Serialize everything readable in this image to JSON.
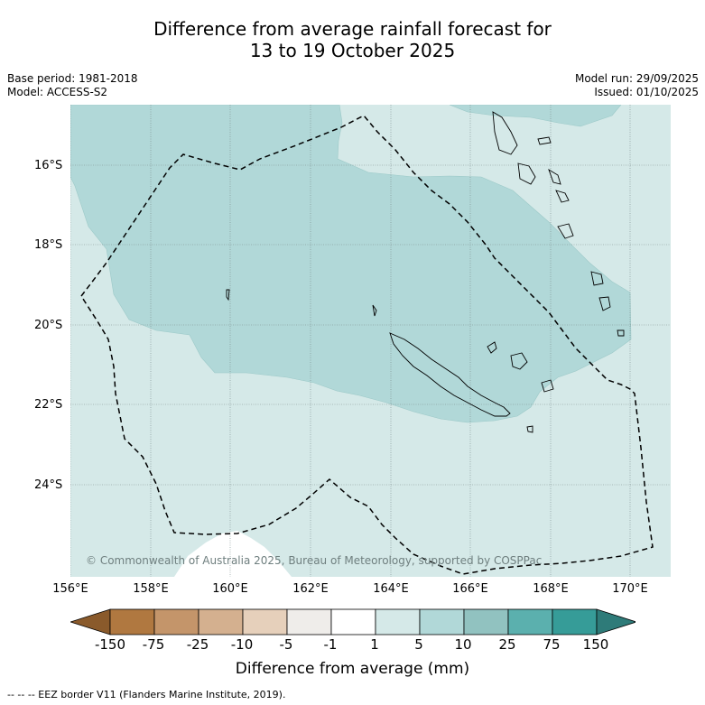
{
  "title_line1": "Difference from average rainfall forecast for",
  "title_line2": "13 to 19 October 2025",
  "base_period": "Base period: 1981-2018",
  "model": "Model: ACCESS-S2",
  "model_run": "Model run: 29/09/2025",
  "issued": "Issued: 01/10/2025",
  "latitude_labels": [
    "16°S",
    "18°S",
    "20°S",
    "22°S",
    "24°S"
  ],
  "longitude_labels": [
    "156°E",
    "158°E",
    "160°E",
    "162°E",
    "164°E",
    "166°E",
    "168°E",
    "170°E"
  ],
  "copyright": "© Commonwealth of Australia 2025, Bureau of Meteorology, supported by COSPPac",
  "colorbar": {
    "tick_labels": [
      "-150",
      "-75",
      "-25",
      "-10",
      "-5",
      "-1",
      "1",
      "5",
      "10",
      "25",
      "75",
      "150"
    ],
    "colors": [
      "#8a5a2b",
      "#b07840",
      "#c4956a",
      "#d4b08f",
      "#e6d0bb",
      "#efedea",
      "#ffffff",
      "#d5e9e8",
      "#b1d8d8",
      "#91c2c0",
      "#5bb0ae",
      "#369c98",
      "#2e7b79"
    ],
    "title": "Difference from average (mm)"
  },
  "map_colors": {
    "light_band": "#d5e9e8",
    "mid_band": "#b1d8d8",
    "white_band": "#ffffff"
  },
  "legend_footer": "--  --  -- EEZ border V11 (Flanders Marine Institute, 2019)."
}
